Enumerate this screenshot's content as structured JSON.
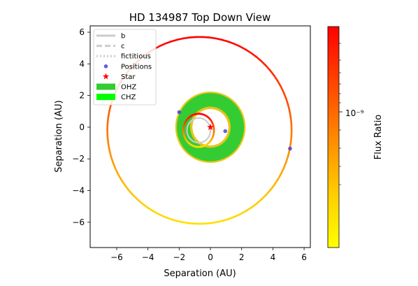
{
  "chart_data": {
    "type": "scatter",
    "title": "HD 134987 Top Down View",
    "xlabel": "Separation (AU)",
    "ylabel": "Separation (AU)",
    "xlim": [
      -7.7,
      6.4
    ],
    "ylim": [
      -7.6,
      6.4
    ],
    "xticks": [
      -6,
      -4,
      -2,
      0,
      2,
      4,
      6
    ],
    "yticks": [
      -6,
      -4,
      -2,
      0,
      2,
      4,
      6
    ],
    "grid": false,
    "legend_position": "upper left",
    "legend": [
      {
        "label": "b",
        "style": "solid-line"
      },
      {
        "label": "c",
        "style": "dashed-line"
      },
      {
        "label": "fictitious",
        "style": "dotted-line"
      },
      {
        "label": "Positions",
        "style": "marker-dot"
      },
      {
        "label": "Star",
        "style": "marker-star"
      },
      {
        "label": "OHZ",
        "style": "patch"
      },
      {
        "label": "CHZ",
        "style": "patch"
      }
    ],
    "colors": {
      "legend_line": "#cccccc",
      "positions_marker": "#4444dd",
      "star": "#ff0000",
      "ohz": "#33cc33",
      "chz": "#00ff00",
      "hz_edge": "#e6c619"
    },
    "star": {
      "x": 0,
      "y": 0
    },
    "orbits": [
      {
        "name": "b",
        "center": [
          -0.75,
          -0.2
        ],
        "semi_axes": [
          0.98,
          1.05
        ]
      },
      {
        "name": "fictitious",
        "center": [
          -0.75,
          -0.2
        ],
        "semi_axes": [
          0.75,
          0.78
        ]
      },
      {
        "name": "c",
        "center": [
          -0.7,
          -0.2
        ],
        "semi_axes": [
          5.9,
          5.9
        ]
      }
    ],
    "habitable_zones": [
      {
        "name": "OHZ",
        "inner_radius": 1.15,
        "outer_radius": 2.25
      },
      {
        "name": "CHZ",
        "inner_radius": 1.3,
        "outer_radius": 2.15
      }
    ],
    "positions": [
      {
        "x": -2.0,
        "y": 0.95
      },
      {
        "x": 0.95,
        "y": -0.25
      },
      {
        "x": 5.1,
        "y": -1.35
      }
    ],
    "colorbar": {
      "label": "Flux Ratio",
      "tick_label": "10⁻⁹",
      "scale": "log",
      "colormap": [
        "#ffff00",
        "#ffcc00",
        "#ff8800",
        "#ff4400",
        "#ff0000"
      ]
    }
  }
}
